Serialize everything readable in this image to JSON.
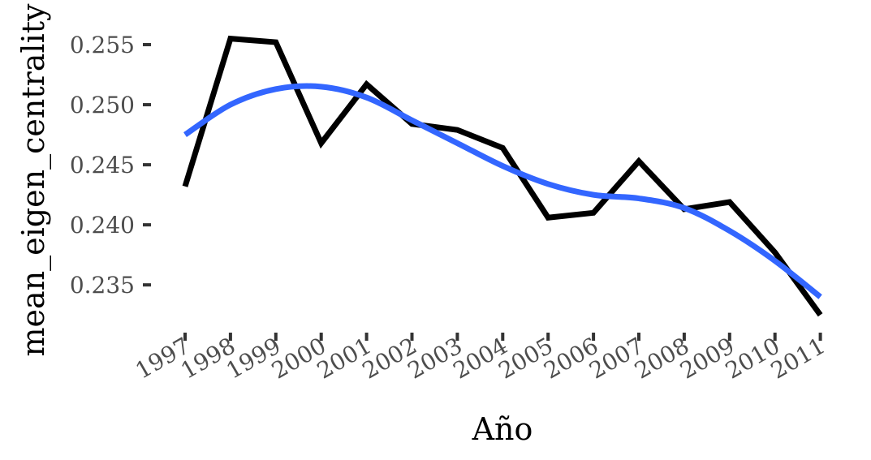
{
  "chart_data": {
    "type": "line",
    "title": "",
    "xlabel": "Año",
    "ylabel": "mean_eigen_centrality",
    "x": [
      "1997",
      "1998",
      "1999",
      "2000",
      "2001",
      "2002",
      "2003",
      "2004",
      "2005",
      "2006",
      "2007",
      "2008",
      "2009",
      "2010",
      "2011"
    ],
    "series": [
      {
        "values": [
          0.2432,
          0.2555,
          0.2552,
          0.2468,
          0.2517,
          0.2484,
          0.2479,
          0.2464,
          0.2406,
          0.241,
          0.2453,
          0.2413,
          0.2419,
          0.2377,
          0.2325
        ],
        "color": "#000000"
      },
      {
        "values": [
          0.2475,
          0.25,
          0.2513,
          0.2515,
          0.2506,
          0.2487,
          0.2468,
          0.2449,
          0.2434,
          0.2425,
          0.2422,
          0.2414,
          0.2395,
          0.237,
          0.234
        ],
        "color": "#3366FF"
      }
    ],
    "yticks": [
      "0.235",
      "0.240",
      "0.245",
      "0.250",
      "0.255"
    ],
    "ylim": [
      0.2315,
      0.2575
    ],
    "grid": false,
    "legend": "none"
  }
}
